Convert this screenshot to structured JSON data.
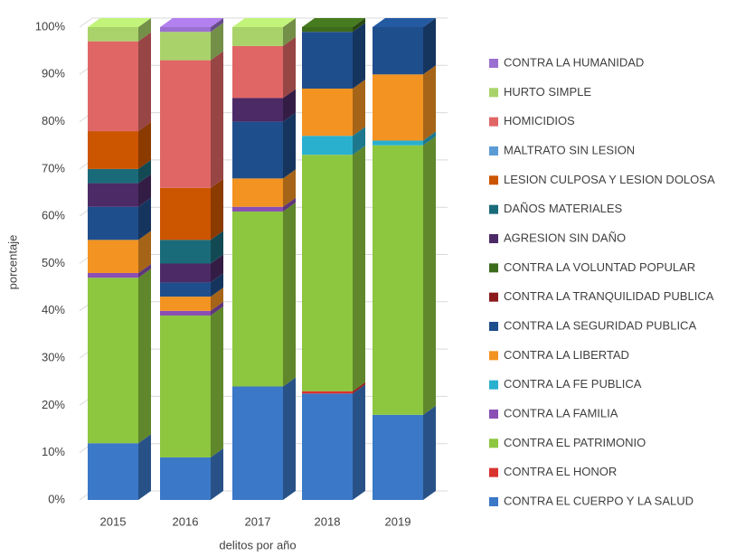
{
  "chart_data": {
    "type": "bar",
    "stacked": true,
    "x_label": "delitos por año",
    "y_label": "porcentaje",
    "categories": [
      "2015",
      "2016",
      "2017",
      "2018",
      "2019"
    ],
    "ylim": [
      0,
      100
    ],
    "yticks": [
      {
        "value": 0,
        "label": "0%"
      },
      {
        "value": 10,
        "label": "10%"
      },
      {
        "value": 20,
        "label": "20%"
      },
      {
        "value": 30,
        "label": "30%"
      },
      {
        "value": 40,
        "label": "40%"
      },
      {
        "value": 50,
        "label": "50%"
      },
      {
        "value": 60,
        "label": "60%"
      },
      {
        "value": 70,
        "label": "70%"
      },
      {
        "value": 80,
        "label": "80%"
      },
      {
        "value": 90,
        "label": "90%"
      },
      {
        "value": 100,
        "label": "100%"
      }
    ],
    "grid": true,
    "series": [
      {
        "name": "CONTRA EL CUERPO Y LA SALUD",
        "color": "#3b78c7",
        "values": [
          12,
          9,
          24,
          22.5,
          18
        ]
      },
      {
        "name": "CONTRA EL HONOR",
        "color": "#d9332e",
        "values": [
          0,
          0,
          0,
          0.5,
          0
        ]
      },
      {
        "name": "CONTRA EL PATRIMONIO",
        "color": "#8dc63f",
        "values": [
          35,
          30,
          37,
          50,
          57
        ]
      },
      {
        "name": "CONTRA LA FAMILIA",
        "color": "#8a4fb5",
        "values": [
          1,
          1,
          1,
          0,
          0
        ]
      },
      {
        "name": "CONTRA LA FE PUBLICA",
        "color": "#2ab0cf",
        "values": [
          0,
          0,
          0,
          4,
          1
        ]
      },
      {
        "name": "CONTRA LA LIBERTAD",
        "color": "#f39322",
        "values": [
          7,
          3,
          6,
          10,
          14
        ]
      },
      {
        "name": "CONTRA LA SEGURIDAD PUBLICA",
        "color": "#1f4e8c",
        "values": [
          7,
          3,
          12,
          12,
          10
        ]
      },
      {
        "name": "CONTRA LA TRANQUILIDAD PUBLICA",
        "color": "#8b1a1a",
        "values": [
          0,
          0,
          0,
          0,
          0
        ]
      },
      {
        "name": "CONTRA LA VOLUNTAD POPULAR",
        "color": "#3d6b1c",
        "values": [
          0,
          0,
          0,
          1,
          0
        ]
      },
      {
        "name": "AGRESION SIN DAÑO",
        "color": "#4b2a66",
        "values": [
          5,
          4,
          5,
          0,
          0
        ]
      },
      {
        "name": "DAÑOS MATERIALES",
        "color": "#1a6b7a",
        "values": [
          3,
          5,
          0,
          0,
          0
        ]
      },
      {
        "name": "LESION CULPOSA Y LESION DOLOSA",
        "color": "#cc5500",
        "values": [
          8,
          11,
          0,
          0,
          0
        ]
      },
      {
        "name": "MALTRATO SIN LESION",
        "color": "#5b9bd5",
        "values": [
          0,
          0,
          0,
          0,
          0
        ]
      },
      {
        "name": "HOMICIDIOS",
        "color": "#e06666",
        "values": [
          19,
          27,
          11,
          0,
          0
        ]
      },
      {
        "name": "HURTO SIMPLE",
        "color": "#a9d36a",
        "values": [
          3,
          6,
          4,
          0,
          0
        ]
      },
      {
        "name": "CONTRA LA HUMANIDAD",
        "color": "#9b6fd0",
        "values": [
          0,
          1,
          0,
          0,
          0
        ]
      }
    ]
  }
}
